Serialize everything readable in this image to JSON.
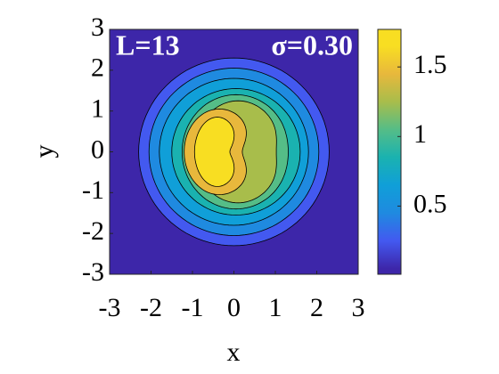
{
  "chart_data": {
    "type": "contour",
    "xlabel": "x",
    "ylabel": "y",
    "annotations": [
      "L=13",
      "σ=0.30"
    ],
    "xlim": [
      -3,
      3
    ],
    "xticks": [
      -3,
      -2,
      -1,
      0,
      1,
      2,
      3
    ],
    "ylim": [
      -3,
      3
    ],
    "yticks": [
      -3,
      -2,
      -1,
      0,
      1,
      2,
      3
    ],
    "levels": [
      0.05,
      0.25,
      0.45,
      0.65,
      0.85,
      1.05,
      1.25,
      1.45,
      1.65
    ],
    "colors": [
      "#3d26a9",
      "#4359f0",
      "#1f8ae0",
      "#109fd8",
      "#1ab2b0",
      "#55bd87",
      "#a8bd4b",
      "#e8b83c",
      "#f8de22"
    ],
    "clim": [
      0.01,
      1.77
    ],
    "cticks": [
      0.5,
      1,
      1.5
    ]
  }
}
